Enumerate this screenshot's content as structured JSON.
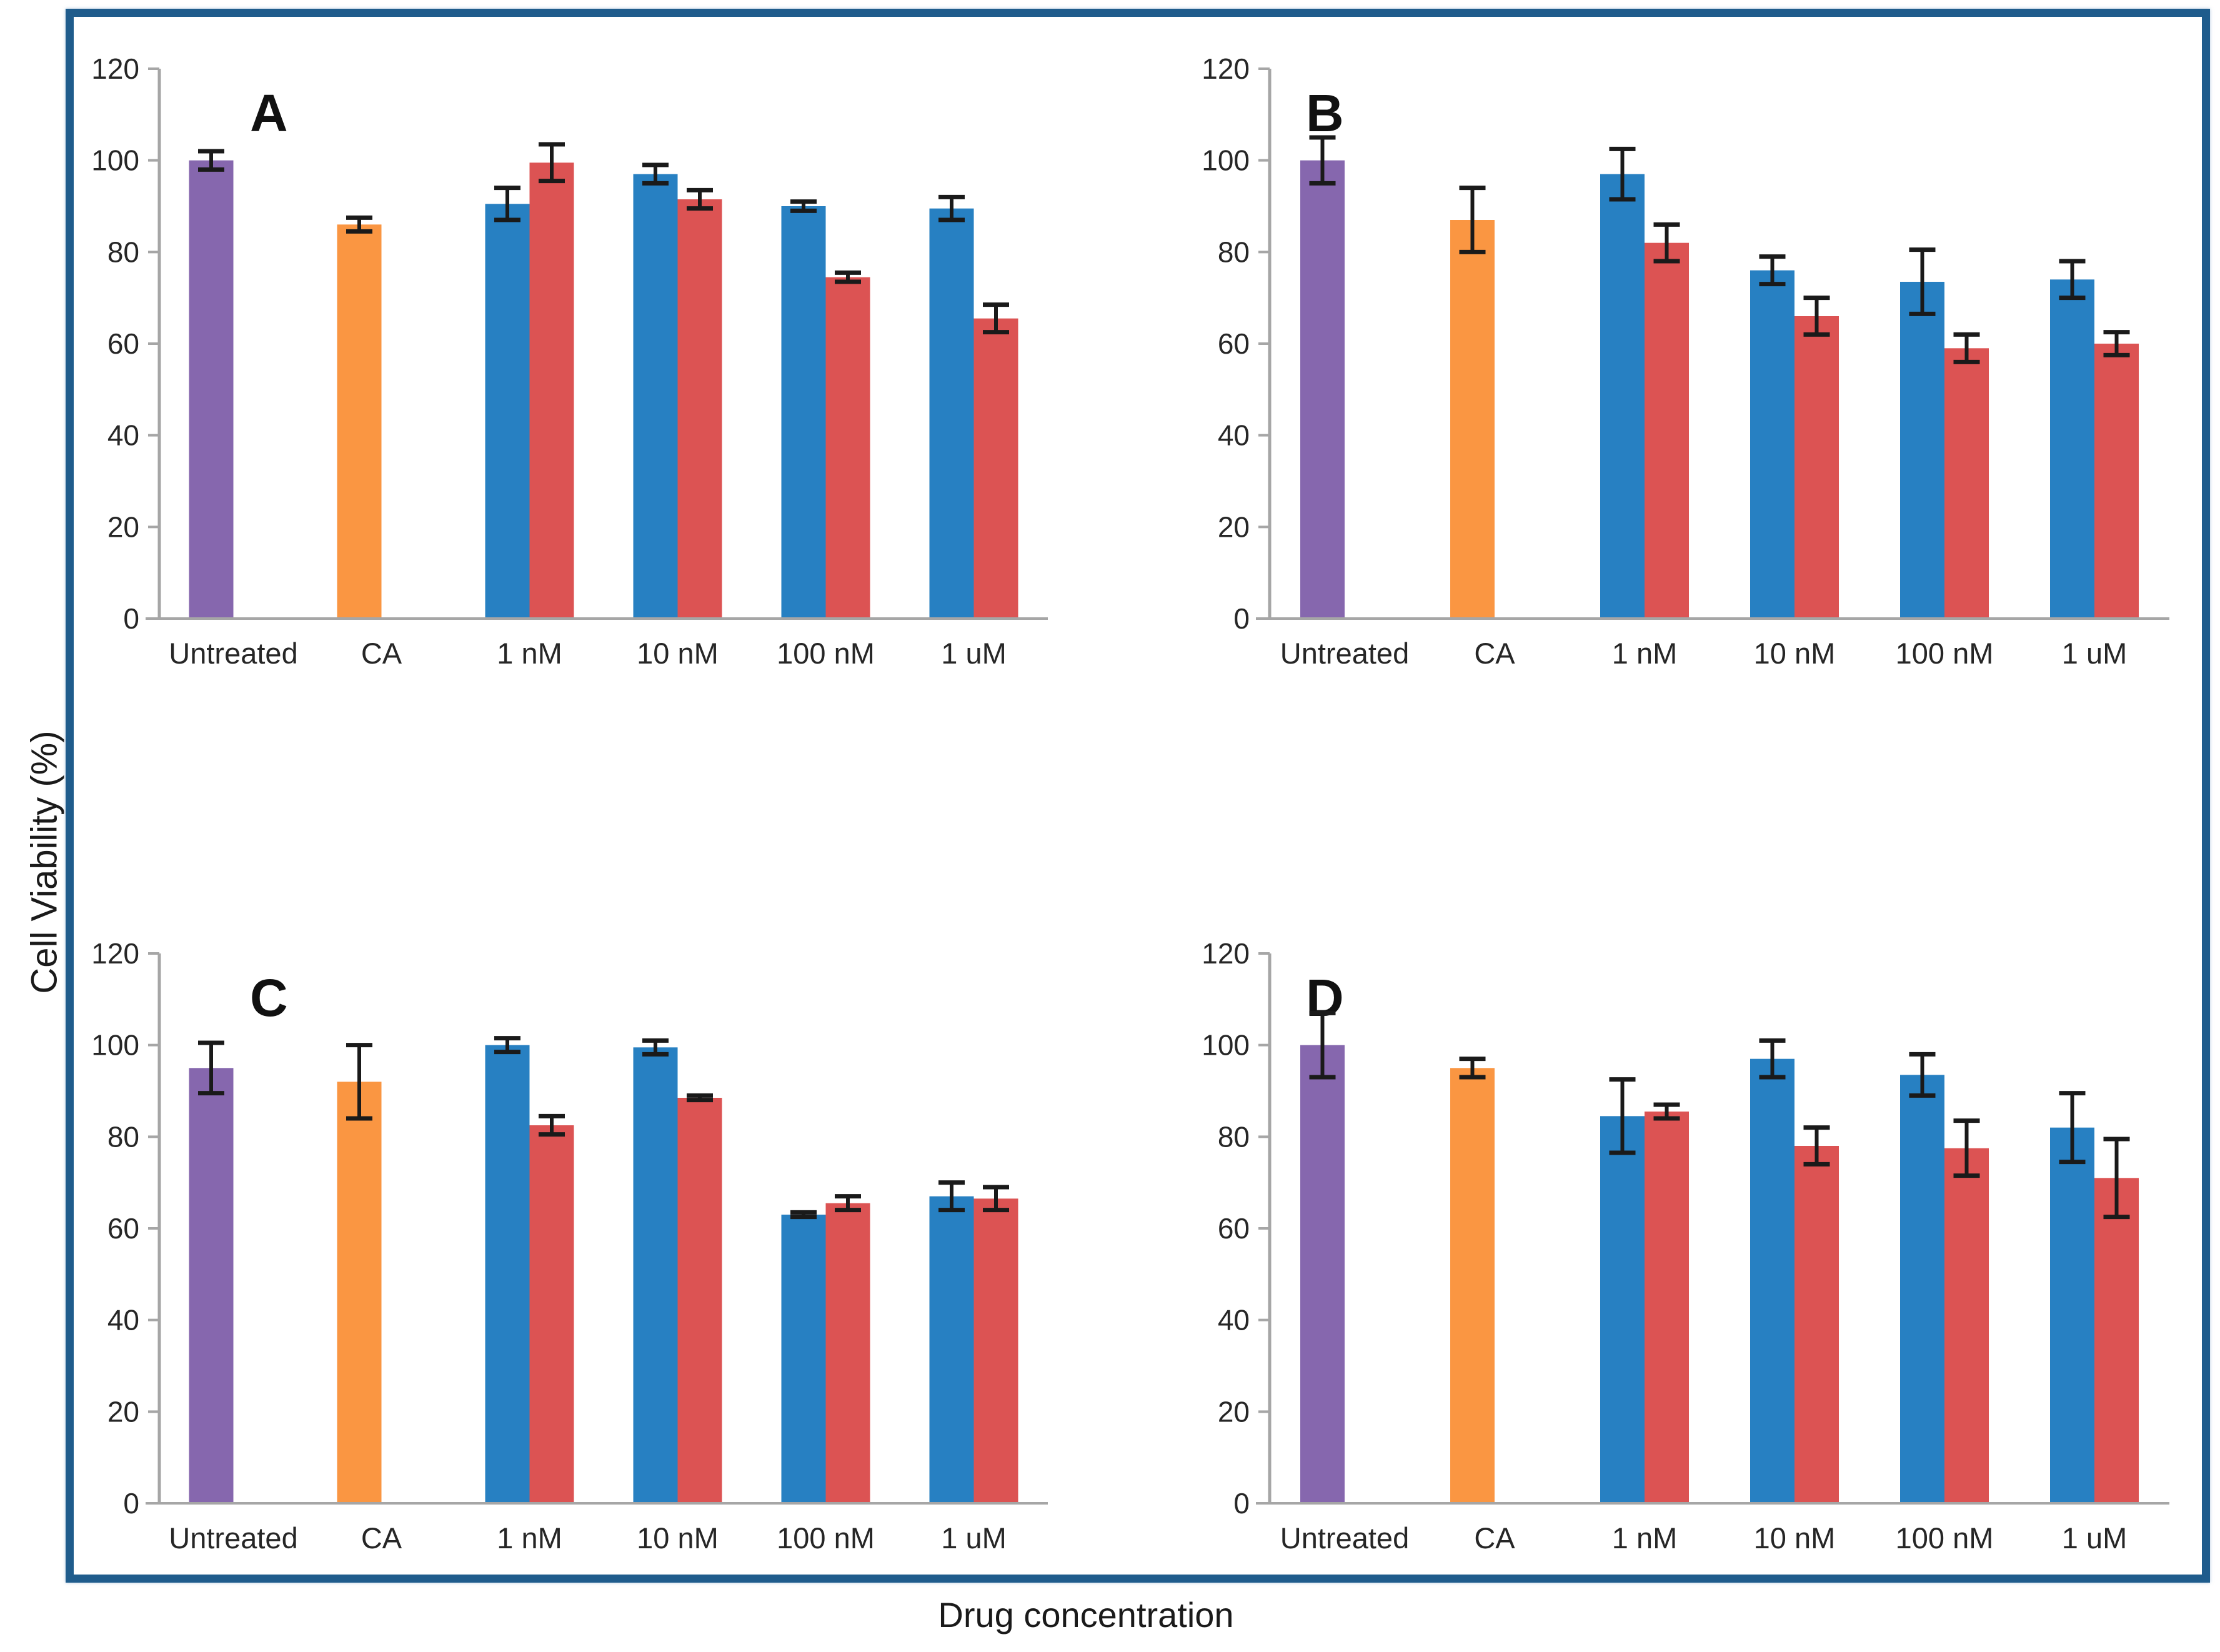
{
  "figure": {
    "ylabel": "Cell Viability (%)",
    "xlabel": "Drug concentration",
    "border_color": "#1F5C8C",
    "axis_color": "#A6A6A6",
    "error_color": "#1A1A1A",
    "text_color": "#262626",
    "series_colors": {
      "untreated": "#8667AE",
      "ca": "#FA9642",
      "blue": "#2780C2",
      "red": "#DC5353"
    }
  },
  "chart_data": {
    "type": "bar",
    "title": "",
    "xlabel": "Drug concentration",
    "ylabel": "Cell Viability (%)",
    "ylim": [
      0,
      120
    ],
    "yticks": [
      0,
      20,
      40,
      60,
      80,
      100,
      120
    ],
    "grid": false,
    "legend": "none",
    "categories": [
      "Untreated",
      "CA",
      "1 nM",
      "10 nM",
      "100 nM",
      "1 uM"
    ],
    "panels": [
      {
        "label": "A",
        "groups": [
          {
            "category": "Untreated",
            "bars": [
              {
                "series": "untreated",
                "value": 100,
                "err": 2
              }
            ]
          },
          {
            "category": "CA",
            "bars": [
              {
                "series": "ca",
                "value": 86,
                "err": 1.5
              }
            ]
          },
          {
            "category": "1 nM",
            "bars": [
              {
                "series": "blue",
                "value": 90.5,
                "err": 3.5
              },
              {
                "series": "red",
                "value": 99.5,
                "err": 4
              }
            ]
          },
          {
            "category": "10 nM",
            "bars": [
              {
                "series": "blue",
                "value": 97,
                "err": 2
              },
              {
                "series": "red",
                "value": 91.5,
                "err": 2
              }
            ]
          },
          {
            "category": "100 nM",
            "bars": [
              {
                "series": "blue",
                "value": 90,
                "err": 1
              },
              {
                "series": "red",
                "value": 74.5,
                "err": 1
              }
            ]
          },
          {
            "category": "1 uM",
            "bars": [
              {
                "series": "blue",
                "value": 89.5,
                "err": 2.5
              },
              {
                "series": "red",
                "value": 65.5,
                "err": 3
              }
            ]
          }
        ]
      },
      {
        "label": "B",
        "groups": [
          {
            "category": "Untreated",
            "bars": [
              {
                "series": "untreated",
                "value": 100,
                "err": 5
              }
            ]
          },
          {
            "category": "CA",
            "bars": [
              {
                "series": "ca",
                "value": 87,
                "err": 7
              }
            ]
          },
          {
            "category": "1 nM",
            "bars": [
              {
                "series": "blue",
                "value": 97,
                "err": 5.5
              },
              {
                "series": "red",
                "value": 82,
                "err": 4
              }
            ]
          },
          {
            "category": "10 nM",
            "bars": [
              {
                "series": "blue",
                "value": 76,
                "err": 3
              },
              {
                "series": "red",
                "value": 66,
                "err": 4
              }
            ]
          },
          {
            "category": "100 nM",
            "bars": [
              {
                "series": "blue",
                "value": 73.5,
                "err": 7
              },
              {
                "series": "red",
                "value": 59,
                "err": 3
              }
            ]
          },
          {
            "category": "1 uM",
            "bars": [
              {
                "series": "blue",
                "value": 74,
                "err": 4
              },
              {
                "series": "red",
                "value": 60,
                "err": 2.5
              }
            ]
          }
        ]
      },
      {
        "label": "C",
        "groups": [
          {
            "category": "Untreated",
            "bars": [
              {
                "series": "untreated",
                "value": 95,
                "err": 5.5
              }
            ]
          },
          {
            "category": "CA",
            "bars": [
              {
                "series": "ca",
                "value": 92,
                "err": 8
              }
            ]
          },
          {
            "category": "1 nM",
            "bars": [
              {
                "series": "blue",
                "value": 100,
                "err": 1.5
              },
              {
                "series": "red",
                "value": 82.5,
                "err": 2
              }
            ]
          },
          {
            "category": "10 nM",
            "bars": [
              {
                "series": "blue",
                "value": 99.5,
                "err": 1.5
              },
              {
                "series": "red",
                "value": 88.5,
                "err": 0.5
              }
            ]
          },
          {
            "category": "100 nM",
            "bars": [
              {
                "series": "blue",
                "value": 63,
                "err": 0.5
              },
              {
                "series": "red",
                "value": 65.5,
                "err": 1.5
              }
            ]
          },
          {
            "category": "1 uM",
            "bars": [
              {
                "series": "blue",
                "value": 67,
                "err": 3
              },
              {
                "series": "red",
                "value": 66.5,
                "err": 2.5
              }
            ]
          }
        ]
      },
      {
        "label": "D",
        "groups": [
          {
            "category": "Untreated",
            "bars": [
              {
                "series": "untreated",
                "value": 100,
                "err": 7
              }
            ]
          },
          {
            "category": "CA",
            "bars": [
              {
                "series": "ca",
                "value": 95,
                "err": 2
              }
            ]
          },
          {
            "category": "1 nM",
            "bars": [
              {
                "series": "blue",
                "value": 84.5,
                "err": 8
              },
              {
                "series": "red",
                "value": 85.5,
                "err": 1.5
              }
            ]
          },
          {
            "category": "10 nM",
            "bars": [
              {
                "series": "blue",
                "value": 97,
                "err": 4
              },
              {
                "series": "red",
                "value": 78,
                "err": 4
              }
            ]
          },
          {
            "category": "100 nM",
            "bars": [
              {
                "series": "blue",
                "value": 93.5,
                "err": 4.5
              },
              {
                "series": "red",
                "value": 77.5,
                "err": 6
              }
            ]
          },
          {
            "category": "1 uM",
            "bars": [
              {
                "series": "blue",
                "value": 82,
                "err": 7.5
              },
              {
                "series": "red",
                "value": 71,
                "err": 8.5
              }
            ]
          }
        ]
      }
    ]
  }
}
